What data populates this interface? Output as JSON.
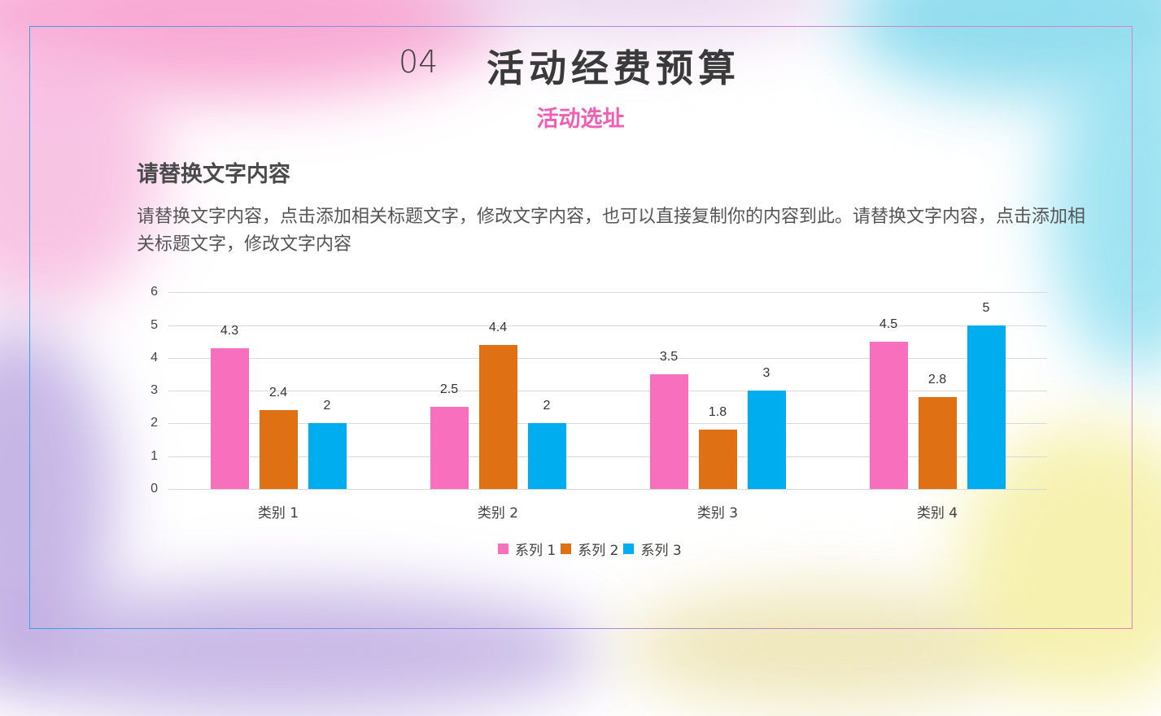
{
  "header": {
    "section_number": "04",
    "title": "活动经费预算",
    "subtitle": "活动选址"
  },
  "content": {
    "heading": "请替换文字内容",
    "paragraph": "请替换文字内容，点击添加相关标题文字，修改文字内容，也可以直接复制你的内容到此。请替换文字内容，点击添加相关标题文字，修改文字内容"
  },
  "colors": {
    "series1": "#f86fbe",
    "series2": "#e07014",
    "series3": "#00aeef",
    "subtitle": "#f05fb4"
  },
  "chart_data": {
    "type": "bar",
    "title": "",
    "xlabel": "",
    "ylabel": "",
    "ylim": [
      0,
      6
    ],
    "yticks": [
      "0",
      "1",
      "2",
      "3",
      "4",
      "5",
      "6"
    ],
    "grid": true,
    "legend_position": "bottom",
    "categories": [
      "类别 1",
      "类别 2",
      "类别 3",
      "类别 4"
    ],
    "series": [
      {
        "name": "系列 1",
        "color": "#f86fbe",
        "values": [
          4.3,
          2.5,
          3.5,
          4.5
        ]
      },
      {
        "name": "系列 2",
        "color": "#e07014",
        "values": [
          2.4,
          4.4,
          1.8,
          2.8
        ]
      },
      {
        "name": "系列 3",
        "color": "#00aeef",
        "values": [
          2,
          2,
          3,
          5
        ]
      }
    ],
    "data_labels": [
      [
        "4.3",
        "2.5",
        "3.5",
        "4.5"
      ],
      [
        "2.4",
        "4.4",
        "1.8",
        "2.8"
      ],
      [
        "2",
        "2",
        "3",
        "5"
      ]
    ]
  }
}
